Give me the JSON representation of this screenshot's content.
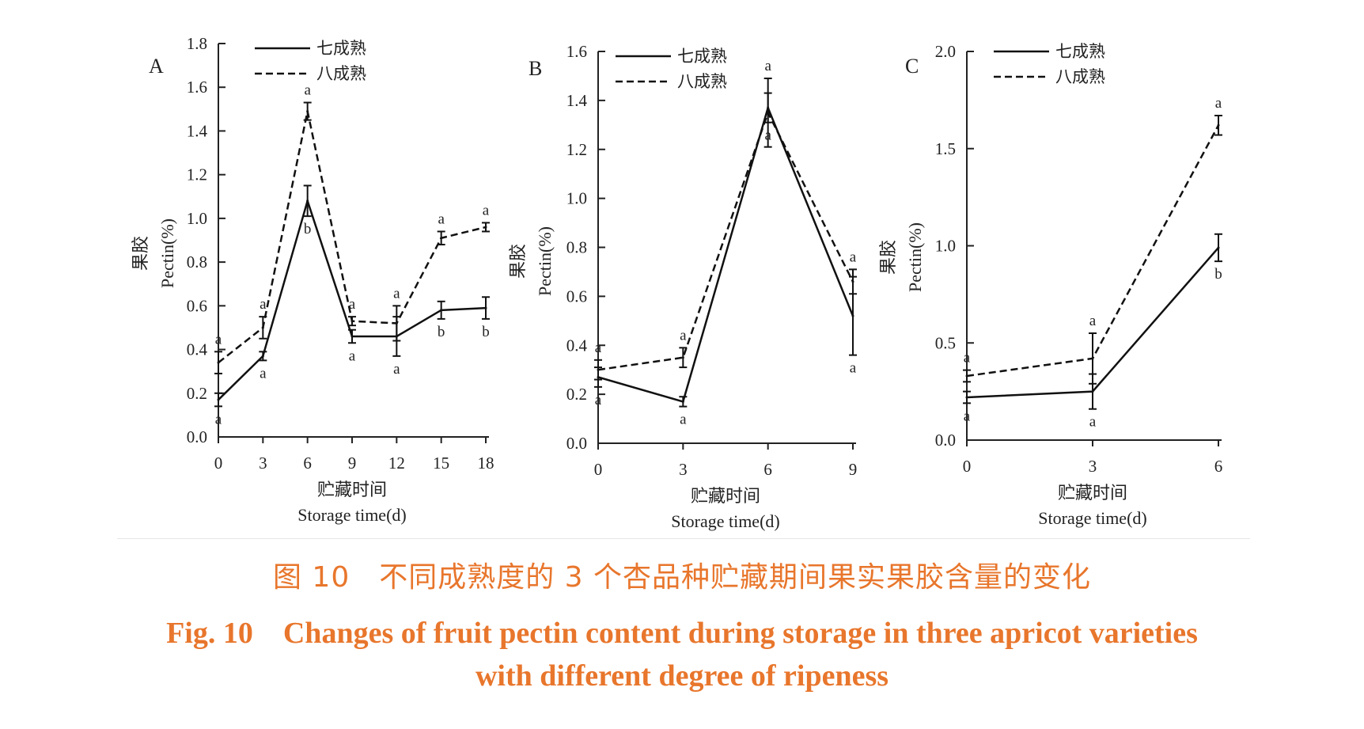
{
  "legend": {
    "series1": "七成熟",
    "series2": "八成熟"
  },
  "axis": {
    "ylabel_zh": "果胶",
    "ylabel_en": "Pectin(%)",
    "xlabel_zh": "贮藏时间",
    "xlabel_en": "Storage time(d)"
  },
  "caption": {
    "zh": "图 10　不同成熟度的 3 个杏品种贮藏期间果实果胶含量的变化",
    "en_line1": "Fig. 10　Changes of fruit pectin content during storage in three apricot varieties",
    "en_line2": "with different degree of ripeness"
  },
  "chart_data": [
    {
      "panel": "A",
      "type": "line",
      "x": [
        0,
        3,
        6,
        9,
        12,
        15,
        18
      ],
      "xticks": [
        "0",
        "3",
        "6",
        "9",
        "12",
        "15",
        "18"
      ],
      "ylim": [
        0,
        1.8
      ],
      "yticks": [
        "0.0",
        "0.2",
        "0.4",
        "0.6",
        "0.8",
        "1.0",
        "1.2",
        "1.4",
        "1.6",
        "1.8"
      ],
      "series": [
        {
          "name": "七成熟",
          "style": "solid",
          "values": [
            0.17,
            0.37,
            1.08,
            0.46,
            0.46,
            0.58,
            0.59
          ],
          "errors": [
            0.03,
            0.02,
            0.07,
            0.03,
            0.09,
            0.04,
            0.05
          ],
          "letters": [
            "a",
            "a",
            "b",
            "a",
            "a",
            "b",
            "b"
          ]
        },
        {
          "name": "八成熟",
          "style": "dashed",
          "values": [
            0.34,
            0.5,
            1.49,
            0.53,
            0.52,
            0.91,
            0.96
          ],
          "errors": [
            0.05,
            0.05,
            0.04,
            0.02,
            0.08,
            0.03,
            0.02
          ],
          "letters": [
            "a",
            "a",
            "a",
            "a",
            "a",
            "a",
            "a"
          ]
        }
      ]
    },
    {
      "panel": "B",
      "type": "line",
      "x": [
        0,
        3,
        6,
        9
      ],
      "xticks": [
        "0",
        "3",
        "6",
        "9"
      ],
      "ylim": [
        0,
        1.6
      ],
      "yticks": [
        "0.0",
        "0.2",
        "0.4",
        "0.6",
        "0.8",
        "1.0",
        "1.2",
        "1.4",
        "1.6"
      ],
      "series": [
        {
          "name": "七成熟",
          "style": "solid",
          "values": [
            0.27,
            0.17,
            1.37,
            0.52
          ],
          "errors": [
            0.04,
            0.02,
            0.06,
            0.16
          ],
          "letters": [
            "a",
            "a",
            "a",
            "a"
          ]
        },
        {
          "name": "八成熟",
          "style": "dashed",
          "values": [
            0.3,
            0.35,
            1.35,
            0.66
          ],
          "errors": [
            0.04,
            0.04,
            0.14,
            0.05
          ],
          "letters": [
            "a",
            "a",
            "a",
            "a"
          ]
        }
      ]
    },
    {
      "panel": "C",
      "type": "line",
      "x": [
        0,
        3,
        6
      ],
      "xticks": [
        "0",
        "3",
        "6"
      ],
      "ylim": [
        0,
        2.0
      ],
      "yticks": [
        "0.0",
        "0.5",
        "1.0",
        "1.5",
        "2.0"
      ],
      "series": [
        {
          "name": "七成熟",
          "style": "solid",
          "values": [
            0.22,
            0.25,
            0.99
          ],
          "errors": [
            0.03,
            0.09,
            0.07
          ],
          "letters": [
            "a",
            "a",
            "b"
          ]
        },
        {
          "name": "八成熟",
          "style": "dashed",
          "values": [
            0.33,
            0.42,
            1.62
          ],
          "errors": [
            0.03,
            0.13,
            0.05
          ],
          "letters": [
            "a",
            "a",
            "a"
          ]
        }
      ]
    }
  ]
}
